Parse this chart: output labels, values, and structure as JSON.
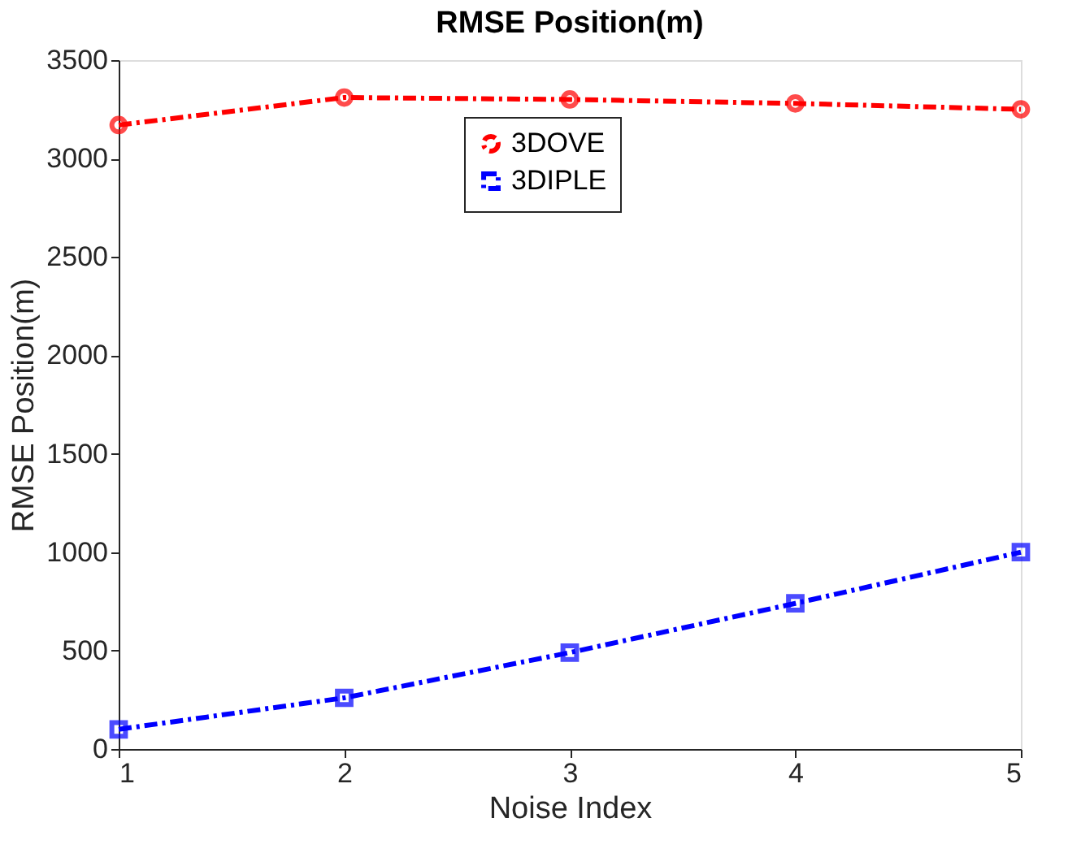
{
  "chart_data": {
    "type": "line",
    "title": "RMSE Position(m)",
    "xlabel": "Noise Index",
    "ylabel": "RMSE Position(m)",
    "x": [
      1,
      2,
      3,
      4,
      5
    ],
    "xlim": [
      1,
      5
    ],
    "xticks": [
      1,
      2,
      3,
      4,
      5
    ],
    "ylim": [
      0,
      3500
    ],
    "yticks": [
      0,
      500,
      1000,
      1500,
      2000,
      2500,
      3000,
      3500
    ],
    "series": [
      {
        "name": "3DOVE",
        "color": "#ff0000",
        "marker": "circle",
        "values": [
          3170,
          3310,
          3300,
          3280,
          3250
        ]
      },
      {
        "name": "3DIPLE",
        "color": "#0000ff",
        "marker": "square",
        "values": [
          100,
          260,
          490,
          740,
          1000
        ]
      }
    ],
    "line_style": "dashed",
    "legend": "top",
    "grid": false
  }
}
